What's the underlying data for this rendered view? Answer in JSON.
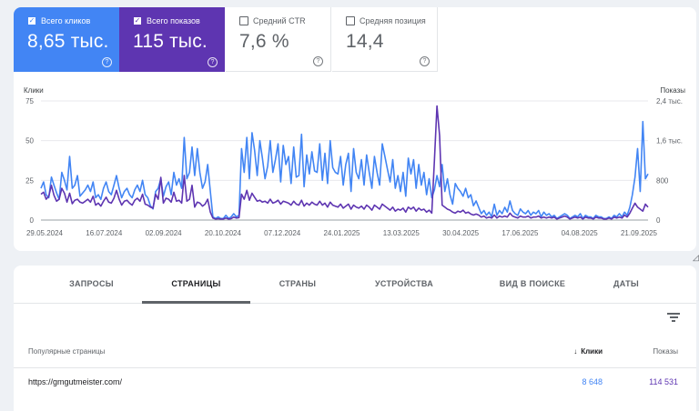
{
  "metrics": [
    {
      "label": "Всего кликов",
      "value": "8,65 тыс.",
      "checked": true,
      "color": "#4285f4"
    },
    {
      "label": "Всего показов",
      "value": "115 тыс.",
      "checked": true,
      "color": "#5e35b1"
    },
    {
      "label": "Средний CTR",
      "value": "7,6 %",
      "checked": false
    },
    {
      "label": "Средняя позиция",
      "value": "14,4",
      "checked": false
    }
  ],
  "chart_data": {
    "type": "line",
    "left_axis_label": "Клики",
    "right_axis_label": "Показы",
    "left_ticks": [
      "75",
      "50",
      "25",
      "0"
    ],
    "right_ticks": [
      "2,4 тыс.",
      "1,6 тыс.",
      "800",
      "0"
    ],
    "x_tick_labels": [
      "29.05.2024",
      "16.07.2024",
      "02.09.2024",
      "20.10.2024",
      "07.12.2024",
      "24.01.2025",
      "13.03.2025",
      "30.04.2025",
      "17.06.2025",
      "04.08.2025",
      "21.09.2025"
    ],
    "left_ylim": [
      0,
      75
    ],
    "right_ylim": [
      0,
      2400
    ],
    "colors": {
      "clicks": "#4285f4",
      "impressions": "#5e35b1"
    },
    "series": [
      {
        "name": "Клики",
        "axis": "left",
        "values": [
          20,
          24,
          16,
          14,
          27,
          22,
          17,
          13,
          30,
          25,
          19,
          40,
          20,
          22,
          28,
          15,
          17,
          19,
          22,
          18,
          24,
          14,
          16,
          13,
          20,
          24,
          18,
          16,
          22,
          28,
          20,
          14,
          18,
          20,
          16,
          14,
          19,
          22,
          18,
          25,
          16,
          14,
          9,
          7,
          18,
          20,
          26,
          15,
          21,
          24,
          16,
          30,
          22,
          26,
          20,
          52,
          26,
          30,
          46,
          28,
          45,
          30,
          20,
          24,
          35,
          18,
          2,
          1,
          2,
          1,
          1,
          3,
          1,
          2,
          4,
          2,
          3,
          45,
          30,
          52,
          26,
          55,
          44,
          28,
          50,
          39,
          26,
          34,
          50,
          30,
          38,
          48,
          24,
          47,
          35,
          40,
          23,
          46,
          27,
          28,
          54,
          21,
          41,
          29,
          43,
          31,
          30,
          48,
          25,
          42,
          23,
          50,
          33,
          30,
          29,
          40,
          22,
          35,
          42,
          18,
          45,
          30,
          26,
          38,
          22,
          41,
          30,
          20,
          40,
          30,
          22,
          48,
          40,
          32,
          24,
          38,
          20,
          28,
          18,
          30,
          15,
          39,
          29,
          38,
          20,
          35,
          22,
          30,
          16,
          26,
          14,
          19,
          28,
          21,
          35,
          18,
          26,
          16,
          10,
          23,
          20,
          18,
          15,
          20,
          14,
          16,
          9,
          12,
          8,
          4,
          6,
          3,
          5,
          2,
          10,
          3,
          6,
          4,
          8,
          5,
          12,
          6,
          4,
          3,
          7,
          5,
          4,
          6,
          3,
          5,
          4,
          6,
          2,
          5,
          3,
          4,
          2,
          3,
          1,
          2,
          3,
          4,
          3,
          1,
          2,
          3,
          2,
          4,
          1,
          3,
          2,
          2,
          1,
          3,
          2,
          2,
          1,
          1,
          2,
          1,
          3,
          2,
          4,
          2,
          5,
          3,
          8,
          16,
          27,
          45,
          18,
          62,
          26,
          29
        ]
      },
      {
        "name": "Показы",
        "axis": "right",
        "values": [
          520,
          560,
          420,
          480,
          700,
          500,
          380,
          420,
          640,
          540,
          360,
          540,
          330,
          400,
          420,
          360,
          340,
          380,
          420,
          360,
          480,
          300,
          340,
          280,
          380,
          460,
          360,
          340,
          440,
          600,
          420,
          300,
          380,
          400,
          340,
          300,
          400,
          440,
          380,
          520,
          320,
          300,
          260,
          240,
          520,
          420,
          860,
          340,
          440,
          420,
          360,
          560,
          380,
          400,
          340,
          900,
          380,
          420,
          700,
          260,
          360,
          340,
          280,
          320,
          420,
          160,
          40,
          20,
          30,
          20,
          20,
          40,
          20,
          30,
          60,
          40,
          50,
          520,
          420,
          600,
          400,
          540,
          460,
          380,
          400,
          360,
          380,
          340,
          420,
          340,
          360,
          400,
          320,
          380,
          360,
          340,
          300,
          380,
          320,
          300,
          400,
          280,
          340,
          300,
          360,
          320,
          300,
          380,
          300,
          340,
          260,
          360,
          300,
          280,
          260,
          320,
          240,
          280,
          320,
          220,
          300,
          260,
          240,
          280,
          220,
          300,
          260,
          200,
          300,
          260,
          220,
          320,
          280,
          240,
          200,
          260,
          180,
          220,
          200,
          240,
          160,
          260,
          220,
          260,
          180,
          240,
          200,
          220,
          160,
          200,
          140,
          1200,
          2300,
          1700,
          300,
          260,
          220,
          200,
          160,
          140,
          180,
          160,
          200,
          140,
          160,
          120,
          100,
          120,
          100,
          60,
          80,
          40,
          60,
          40,
          100,
          40,
          80,
          60,
          80,
          60,
          140,
          80,
          60,
          40,
          80,
          60,
          60,
          80,
          40,
          60,
          60,
          80,
          40,
          60,
          40,
          60,
          40,
          60,
          20,
          40,
          60,
          80,
          60,
          20,
          40,
          60,
          40,
          60,
          20,
          60,
          40,
          40,
          20,
          60,
          40,
          40,
          20,
          20,
          40,
          20,
          60,
          40,
          60,
          40,
          100,
          60,
          140,
          240,
          340,
          260,
          220,
          180,
          320,
          260
        ]
      }
    ]
  },
  "tabs": [
    "ЗАПРОСЫ",
    "СТРАНИЦЫ",
    "СТРАНЫ",
    "УСТРОЙСТВА",
    "ВИД В ПОИСКЕ",
    "ДАТЫ"
  ],
  "selected_tab": "СТРАНИЦЫ",
  "table": {
    "headers": {
      "page": "Популярные страницы",
      "clicks": "Клики",
      "impressions": "Показы"
    },
    "rows": [
      {
        "url": "https://gmgutmeister.com/",
        "clicks": "8 648",
        "impressions": "114 531"
      }
    ]
  }
}
